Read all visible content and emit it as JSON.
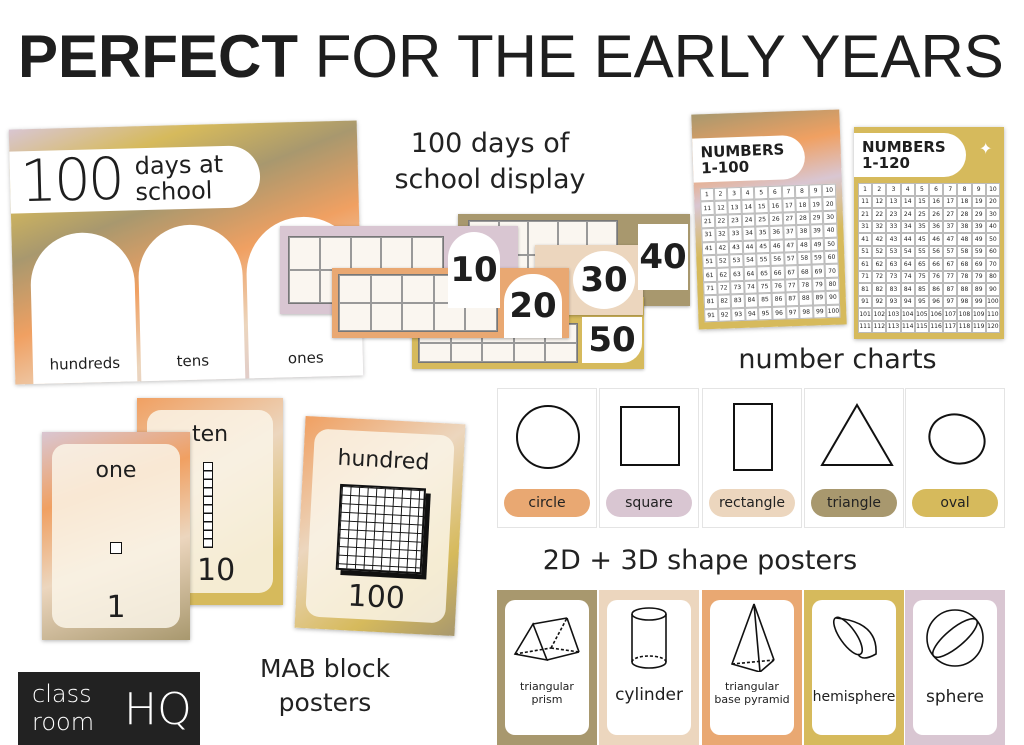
{
  "headline": {
    "bold": "PERFECT",
    "rest": "FOR THE EARLY YEARS"
  },
  "colors": {
    "orange": "#f0a062",
    "lilac": "#d9c6d2",
    "khaki": "#a8986e",
    "mustard": "#d6ba5c",
    "beige": "#ecd6be"
  },
  "hundred_days": {
    "caption": "100 days of school display",
    "poster": {
      "big": "100",
      "line1": "days at",
      "line2": "school",
      "columns": [
        "hundreds",
        "tens",
        "ones"
      ]
    },
    "cards": [
      "10",
      "20",
      "30",
      "40",
      "50"
    ]
  },
  "number_charts": {
    "caption": "number charts",
    "charts": [
      {
        "title_l1": "NUMBERS",
        "title_l2": "1-100",
        "start": 1,
        "end": 100
      },
      {
        "title_l1": "NUMBERS",
        "title_l2": "1-120",
        "start": 1,
        "end": 120
      }
    ]
  },
  "shapes": {
    "caption": "2D + 3D shape posters",
    "flat": [
      {
        "label": "circle",
        "icon": "circle-icon"
      },
      {
        "label": "square",
        "icon": "square-icon"
      },
      {
        "label": "rectangle",
        "icon": "rectangle-icon"
      },
      {
        "label": "triangle",
        "icon": "triangle-icon"
      },
      {
        "label": "oval",
        "icon": "oval-icon"
      }
    ],
    "solid": [
      {
        "label": "triangular prism",
        "icon": "prism-icon"
      },
      {
        "label": "cylinder",
        "icon": "cylinder-icon"
      },
      {
        "label": "triangular base pyramid",
        "icon": "pyramid-icon"
      },
      {
        "label": "hemisphere",
        "icon": "hemisphere-icon"
      },
      {
        "label": "sphere",
        "icon": "sphere-icon"
      }
    ]
  },
  "mab": {
    "caption_l1": "MAB block",
    "caption_l2": "posters",
    "cards": [
      {
        "word": "one",
        "num": "1"
      },
      {
        "word": "ten",
        "num": "10"
      },
      {
        "word": "hundred",
        "num": "100"
      }
    ]
  },
  "logo": {
    "l1": "class",
    "l2": "room",
    "hq": "HQ"
  }
}
